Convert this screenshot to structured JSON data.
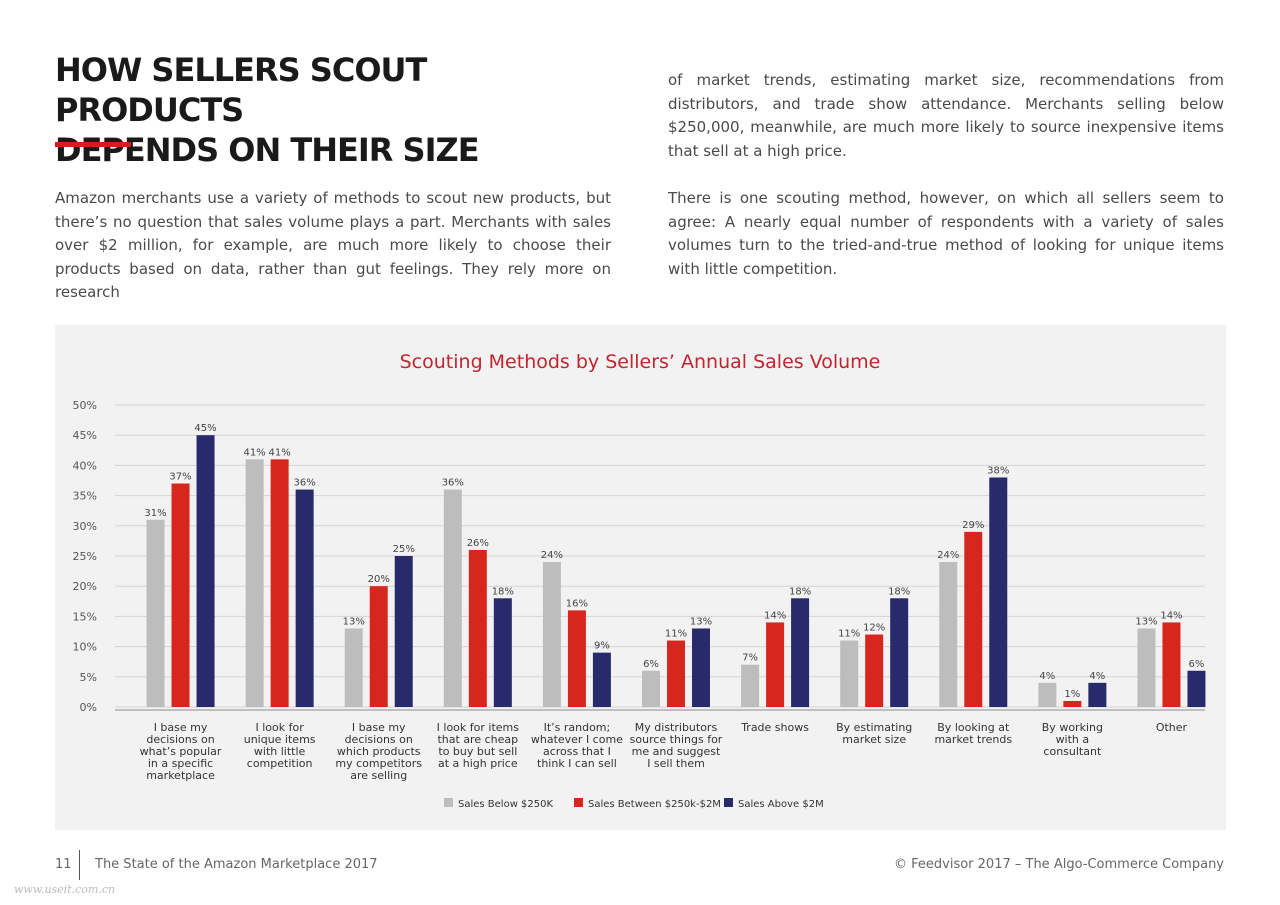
{
  "page": {
    "title_lines": [
      "HOW SELLERS SCOUT PRODUCTS",
      "DEPENDS ON THEIR SIZE"
    ],
    "paragraph1": "Amazon merchants use a variety of methods to scout new products, but there’s no question that sales volume plays a part. Merchants with sales over $2 million, for example, are much more likely to choose their products based on data, rather than gut feelings. They rely more on research",
    "paragraph2": "of market trends, estimating market size, recommendations from distributors, and trade show attendance. Merchants selling below $250,000, meanwhile, are much more likely to source inexpensive items that sell at a high price.",
    "paragraph3": "There is one scouting method, however, on which all sellers seem to agree: A nearly equal number of respondents with a variety of sales volumes turn to the tried-and-true method of looking for unique items with little competition.",
    "accent_color": "#d0201c"
  },
  "footer": {
    "page_number": "11",
    "report_title": "The State of the Amazon Marketplace 2017",
    "copyright": "© Feedvisor 2017 – The Algo-Commerce Company"
  },
  "watermark": "www.useit.com.cn",
  "chart_data": {
    "type": "bar",
    "title": "Scouting Methods by Sellers’ Annual Sales Volume",
    "title_color": "#c0262d",
    "xlabel": "",
    "ylabel": "",
    "ylim": [
      0,
      50
    ],
    "yticks": [
      "0%",
      "5%",
      "10%",
      "15%",
      "20%",
      "25%",
      "30%",
      "35%",
      "40%",
      "45%",
      "50%"
    ],
    "grid": true,
    "legend_position": "bottom-center",
    "categories": [
      [
        "I base my",
        "decisions on",
        "what’s popular",
        "in a specific",
        "marketplace"
      ],
      [
        "I look for",
        "unique items",
        "with little",
        "competition"
      ],
      [
        "I base my",
        "decisions on",
        "which products",
        "my competitors",
        "are selling"
      ],
      [
        "I look for items",
        "that are cheap",
        "to buy but sell",
        "at a high price"
      ],
      [
        "It’s random;",
        "whatever I come",
        "across that I",
        "think I can sell"
      ],
      [
        "My distributors",
        "source things for",
        "me and suggest",
        "I sell them"
      ],
      [
        "Trade shows"
      ],
      [
        "By estimating",
        "market size"
      ],
      [
        "By looking at",
        "market trends"
      ],
      [
        "By working",
        "with a",
        "consultant"
      ],
      [
        "Other"
      ]
    ],
    "series": [
      {
        "name": "Sales Below $250K",
        "color": "#bdbdbd",
        "values": [
          31,
          41,
          13,
          36,
          24,
          6,
          7,
          11,
          24,
          4,
          13
        ]
      },
      {
        "name": "Sales Between $250k-$2M",
        "color": "#d7261e",
        "values": [
          37,
          41,
          20,
          26,
          16,
          11,
          14,
          12,
          29,
          1,
          14
        ]
      },
      {
        "name": "Sales Above $2M",
        "color": "#272a6b",
        "values": [
          45,
          36,
          25,
          18,
          9,
          13,
          18,
          18,
          38,
          4,
          6
        ]
      }
    ],
    "value_suffix": "%"
  }
}
